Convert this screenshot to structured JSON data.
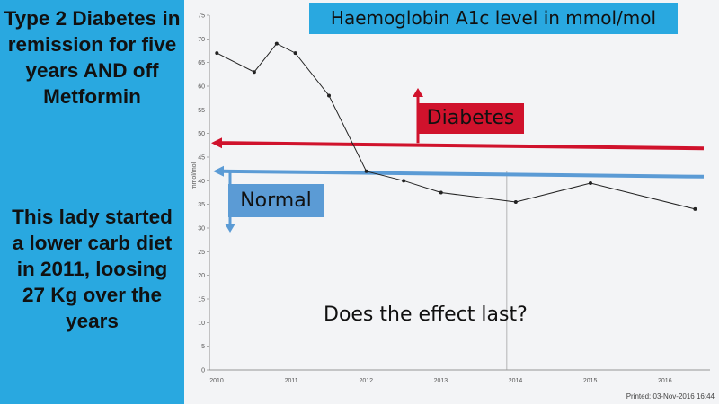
{
  "sidebar": {
    "top_text": "Type 2 Diabetes in remission for five years AND off Metformin",
    "bottom_text": "This lady started a lower carb diet in 2011, loosing 27 Kg over the years",
    "background": "#29a8e0"
  },
  "annotations": {
    "title": "Haemoglobin A1c level in mmol/mol",
    "diabetes_label": "Diabetes",
    "normal_label": "Normal",
    "question": "Does the effect last?",
    "colors": {
      "diabetes": "#d0122c",
      "normal": "#5b9bd5",
      "title_bg": "#29a8e0"
    }
  },
  "chart_data": {
    "type": "line",
    "title": "",
    "xlabel": "",
    "ylabel": "mmol/mol",
    "ylim": [
      0,
      75
    ],
    "yticks": [
      0,
      5,
      10,
      15,
      20,
      25,
      30,
      35,
      40,
      45,
      50,
      55,
      60,
      65,
      70,
      75
    ],
    "xlim": [
      2010,
      2016.7
    ],
    "xticks": [
      2010,
      2011,
      2012,
      2013,
      2014,
      2015,
      2016
    ],
    "series": [
      {
        "x": [
          2010.1,
          2010.6,
          2010.9,
          2011.15,
          2011.6,
          2012.1,
          2012.6,
          2013.1,
          2014.1,
          2015.1,
          2016.5
        ],
        "y": [
          67,
          63,
          69,
          67,
          58,
          42,
          40,
          37.5,
          35.5,
          39.5,
          34
        ]
      }
    ],
    "reference_lines": [
      {
        "label": "Diabetes",
        "y": 48
      },
      {
        "label": "Normal",
        "y": 42
      }
    ],
    "printed_note": "Printed: 03-Nov-2016 16:44",
    "grid": false
  }
}
